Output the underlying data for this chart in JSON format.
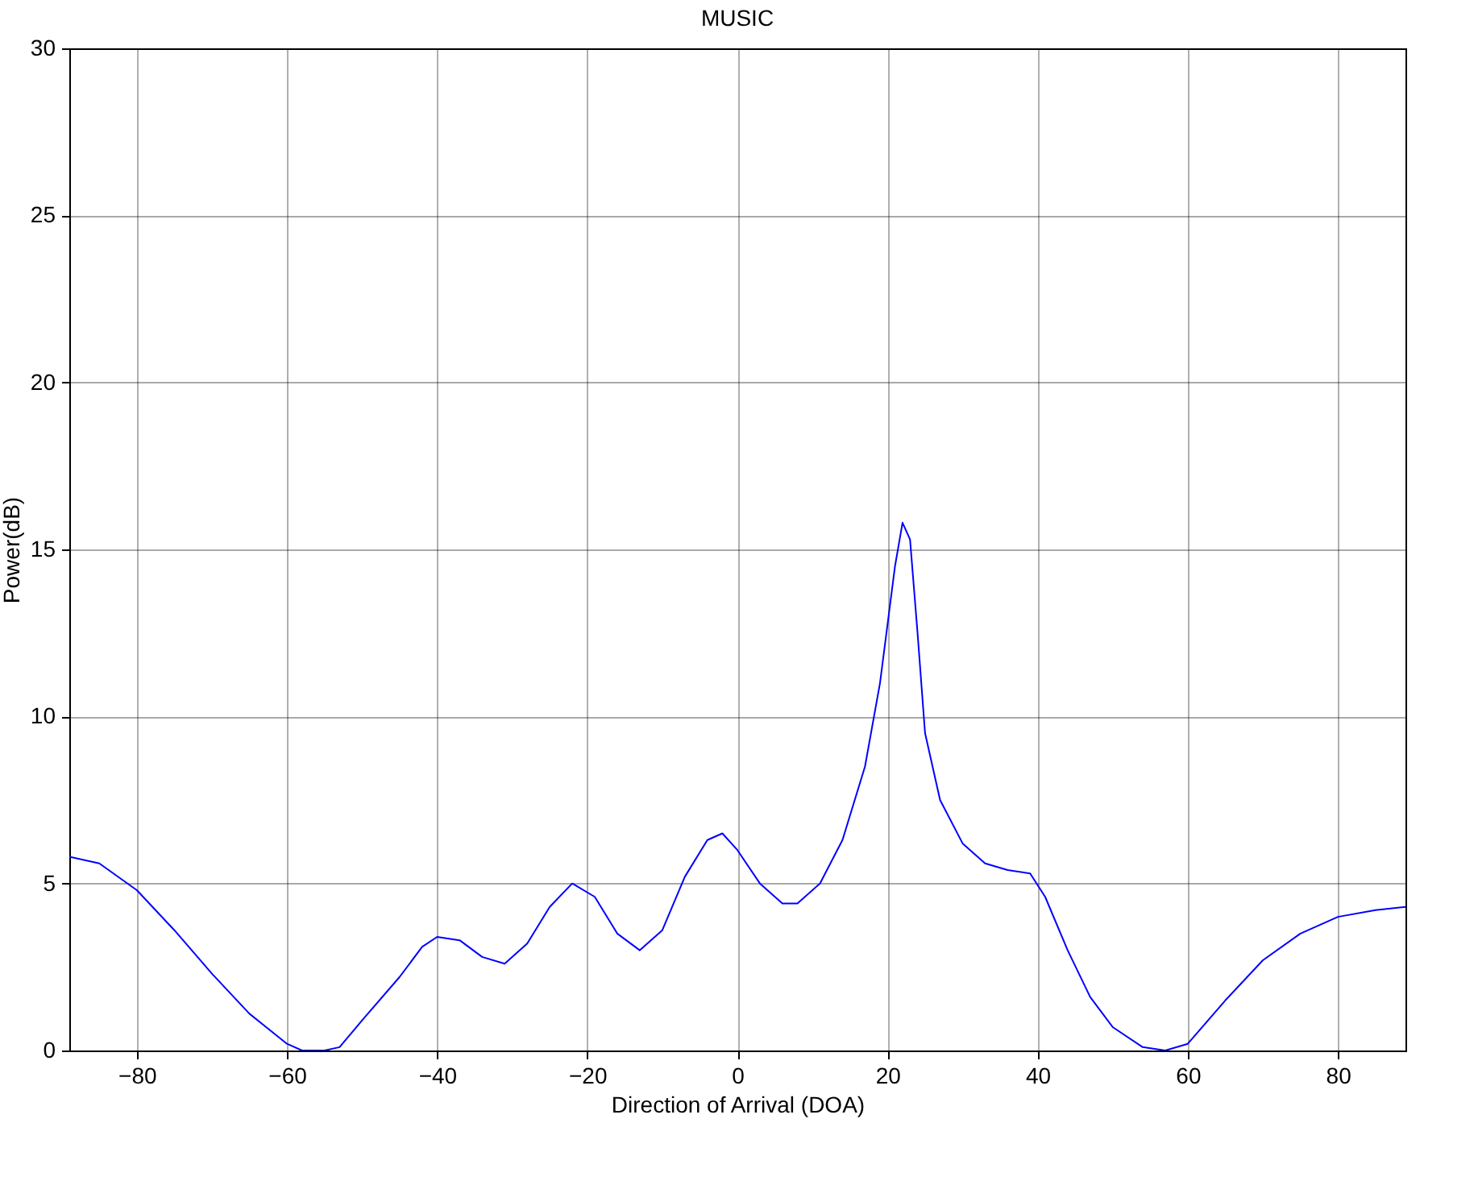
{
  "chart_data": {
    "type": "line",
    "title": "MUSIC",
    "xlabel": "Direction of Arrival (DOA)",
    "ylabel": "Power(dB)",
    "xlim": [
      -89,
      89
    ],
    "ylim": [
      0,
      30
    ],
    "xticks": [
      -80,
      -60,
      -40,
      -20,
      0,
      20,
      40,
      60,
      80
    ],
    "yticks": [
      0,
      5,
      10,
      15,
      20,
      25,
      30
    ],
    "grid": true,
    "line_style": "solid",
    "marker": "none",
    "series": [
      {
        "color": "#0000ff",
        "x": [
          -89,
          -85,
          -80,
          -75,
          -70,
          -65,
          -60,
          -58,
          -55,
          -53,
          -50,
          -45,
          -42,
          -40,
          -37,
          -34,
          -31,
          -28,
          -25,
          -22,
          -19,
          -16,
          -13,
          -10,
          -7,
          -4,
          -2,
          0,
          3,
          6,
          8,
          11,
          14,
          17,
          19,
          21,
          22,
          23,
          24,
          25,
          27,
          30,
          33,
          36,
          39,
          41,
          44,
          47,
          50,
          54,
          57,
          60,
          65,
          70,
          75,
          80,
          85,
          89
        ],
        "values": [
          5.8,
          5.6,
          4.8,
          3.6,
          2.3,
          1.1,
          0.2,
          0.0,
          0.0,
          0.1,
          0.9,
          2.2,
          3.1,
          3.4,
          3.3,
          2.8,
          2.6,
          3.2,
          4.3,
          5.0,
          4.6,
          3.5,
          3.0,
          3.6,
          5.2,
          6.3,
          6.5,
          6.0,
          5.0,
          4.4,
          4.4,
          5.0,
          6.3,
          8.5,
          11.0,
          14.5,
          15.8,
          15.3,
          12.5,
          9.5,
          7.5,
          6.2,
          5.6,
          5.4,
          5.3,
          4.6,
          3.0,
          1.6,
          0.7,
          0.1,
          0.0,
          0.2,
          1.5,
          2.7,
          3.5,
          4.0,
          4.2,
          4.3
        ]
      }
    ]
  }
}
